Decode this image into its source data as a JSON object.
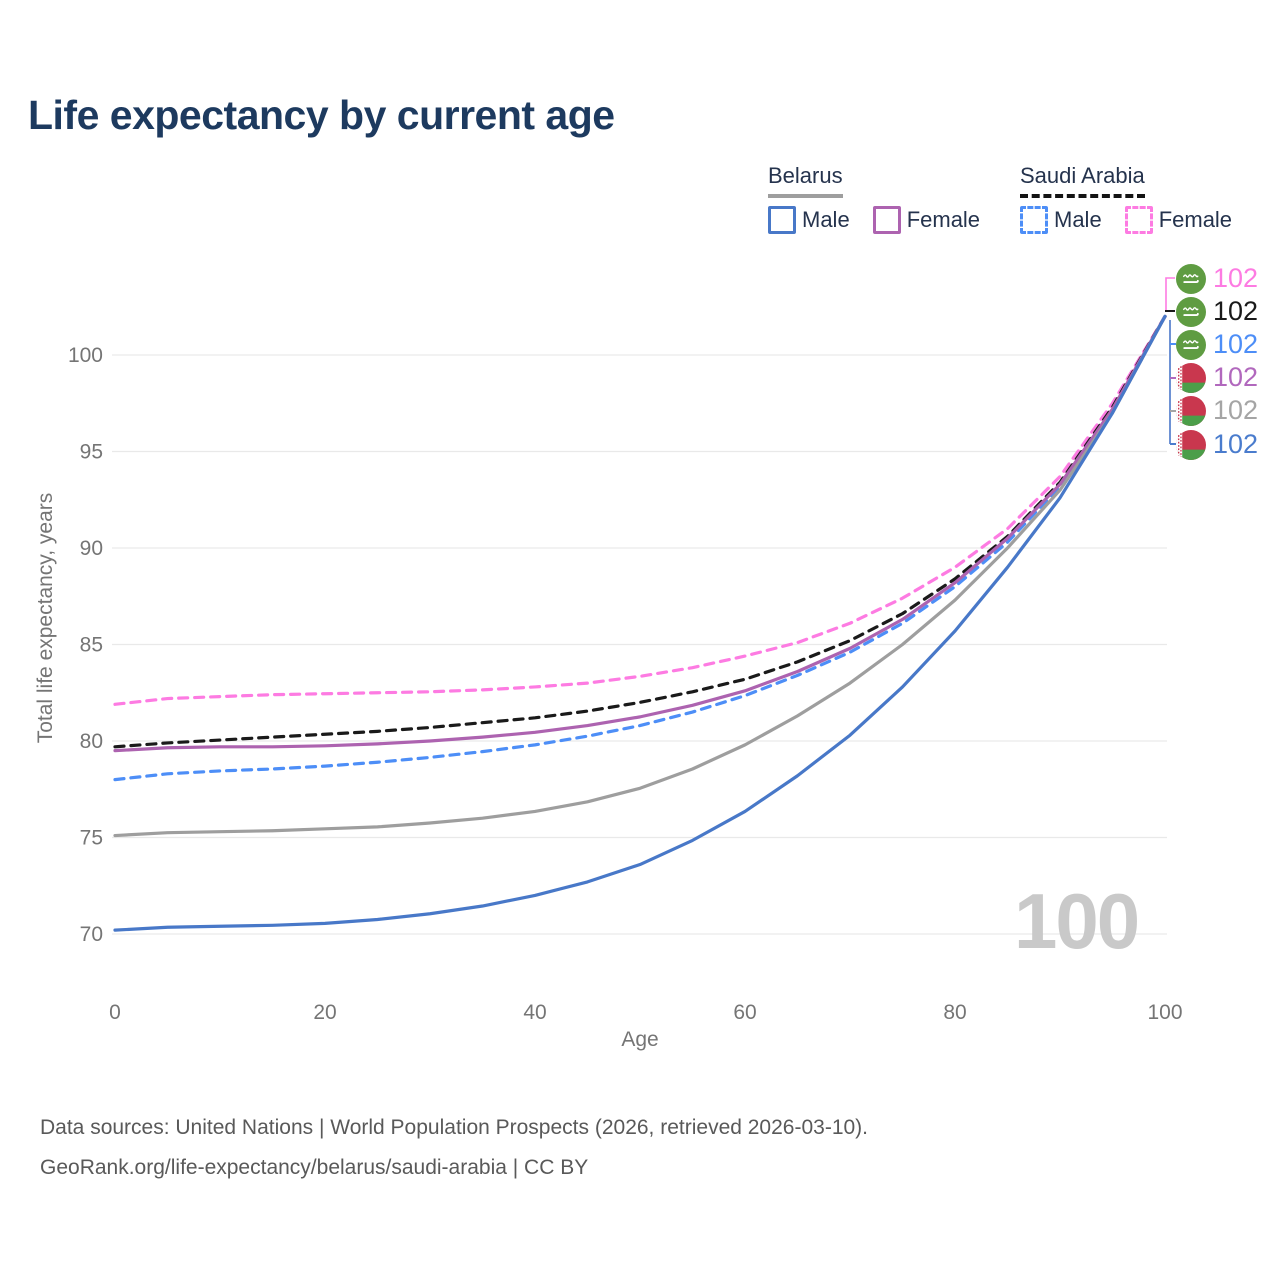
{
  "title": "Life expectancy by current age",
  "legend": {
    "groups": [
      {
        "label": "Belarus",
        "line_style": "solid",
        "line_color": "#9e9e9e",
        "items": [
          {
            "label": "Male",
            "color": "#4878c8",
            "dashed": false
          },
          {
            "label": "Female",
            "color": "#ad63b0",
            "dashed": false
          }
        ]
      },
      {
        "label": "Saudi Arabia",
        "line_style": "dashed",
        "line_color": "#141414",
        "items": [
          {
            "label": "Male",
            "color": "#4d8ef7",
            "dashed": true
          },
          {
            "label": "Female",
            "color": "#fd7be2",
            "dashed": true
          }
        ]
      }
    ]
  },
  "chart_data": {
    "type": "line",
    "title": "Life expectancy by current age",
    "xlabel": "Age",
    "ylabel": "Total life expectancy, years",
    "xlim": [
      0,
      100
    ],
    "ylim": [
      68,
      103
    ],
    "xticks": [
      0,
      20,
      40,
      60,
      80,
      100
    ],
    "yticks": [
      70,
      75,
      80,
      85,
      90,
      95,
      100
    ],
    "grid": "horizontal",
    "legend_position": "top-right",
    "x": [
      0,
      5,
      10,
      15,
      20,
      25,
      30,
      35,
      40,
      45,
      50,
      55,
      60,
      65,
      70,
      75,
      80,
      85,
      90,
      95,
      100
    ],
    "series": [
      {
        "id": "saudi-female",
        "name": "Saudi Arabia Female",
        "country": "Saudi Arabia",
        "sex": "Female",
        "color": "#fd7be2",
        "dashed": true,
        "values": [
          81.9,
          82.2,
          82.3,
          82.4,
          82.45,
          82.5,
          82.55,
          82.65,
          82.8,
          83.0,
          83.35,
          83.8,
          84.4,
          85.1,
          86.1,
          87.4,
          89.0,
          91.0,
          93.7,
          97.5,
          102
        ]
      },
      {
        "id": "saudi-total",
        "name": "Saudi Arabia Both sexes",
        "country": "Saudi Arabia",
        "sex": "Both",
        "color": "#1a1a1a",
        "dashed": true,
        "values": [
          79.7,
          79.9,
          80.05,
          80.2,
          80.35,
          80.5,
          80.7,
          80.95,
          81.2,
          81.55,
          82.0,
          82.55,
          83.2,
          84.1,
          85.2,
          86.6,
          88.4,
          90.6,
          93.4,
          97.3,
          102
        ]
      },
      {
        "id": "saudi-male",
        "name": "Saudi Arabia Male",
        "country": "Saudi Arabia",
        "sex": "Male",
        "color": "#4d8ef7",
        "dashed": true,
        "values": [
          78.0,
          78.3,
          78.45,
          78.55,
          78.7,
          78.9,
          79.15,
          79.45,
          79.8,
          80.25,
          80.8,
          81.5,
          82.35,
          83.4,
          84.6,
          86.1,
          88.0,
          90.3,
          93.2,
          97.1,
          102
        ]
      },
      {
        "id": "belarus-female",
        "name": "Belarus Female",
        "country": "Belarus",
        "sex": "Female",
        "color": "#ad63b0",
        "dashed": false,
        "values": [
          79.5,
          79.65,
          79.7,
          79.7,
          79.75,
          79.85,
          80.0,
          80.2,
          80.45,
          80.8,
          81.25,
          81.85,
          82.6,
          83.6,
          84.8,
          86.3,
          88.2,
          90.5,
          93.3,
          97.2,
          102
        ]
      },
      {
        "id": "belarus-total",
        "name": "Belarus Both sexes",
        "country": "Belarus",
        "sex": "Both",
        "color": "#9e9e9e",
        "dashed": false,
        "values": [
          75.1,
          75.25,
          75.3,
          75.35,
          75.45,
          75.55,
          75.75,
          76.0,
          76.35,
          76.85,
          77.55,
          78.55,
          79.8,
          81.3,
          83.0,
          85.0,
          87.3,
          90.0,
          93.0,
          97.0,
          102
        ]
      },
      {
        "id": "belarus-male",
        "name": "Belarus Male",
        "country": "Belarus",
        "sex": "Male",
        "color": "#4878c8",
        "dashed": false,
        "values": [
          70.2,
          70.35,
          70.4,
          70.45,
          70.55,
          70.75,
          71.05,
          71.45,
          72.0,
          72.7,
          73.6,
          74.85,
          76.35,
          78.2,
          80.3,
          82.8,
          85.7,
          89.0,
          92.6,
          97.0,
          102
        ]
      }
    ]
  },
  "end_labels": [
    {
      "flag": "saudi-arabia",
      "value": "102",
      "color": "#fd7be2"
    },
    {
      "flag": "saudi-arabia",
      "value": "102",
      "color": "#1a1a1a"
    },
    {
      "flag": "saudi-arabia",
      "value": "102",
      "color": "#4d8ef7"
    },
    {
      "flag": "belarus",
      "value": "102",
      "color": "#b168bd"
    },
    {
      "flag": "belarus",
      "value": "102",
      "color": "#a5a5a5"
    },
    {
      "flag": "belarus",
      "value": "102",
      "color": "#4a7ccd"
    }
  ],
  "watermark": {
    "age": "100"
  },
  "footer": {
    "line1": "Data sources: United Nations | World Population Prospects (2026, retrieved 2026-03-10).",
    "line2": "GeoRank.org/life-expectancy/belarus/saudi-arabia | CC BY"
  }
}
